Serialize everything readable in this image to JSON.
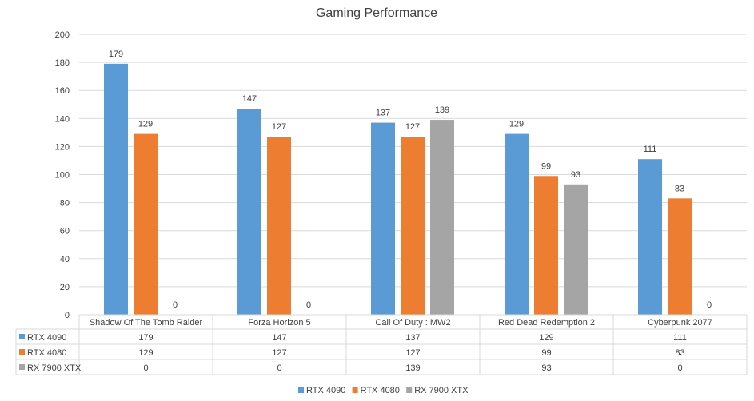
{
  "chart_data": {
    "type": "bar",
    "title": "Gaming Performance",
    "categories": [
      "Shadow Of The Tomb Raider",
      "Forza Horizon 5",
      "Call Of Duty : MW2",
      "Red Dead Redemption 2",
      "Cyberpunk 2077"
    ],
    "series": [
      {
        "name": "RTX 4090",
        "color": "#5b9bd5",
        "values": [
          179,
          147,
          137,
          129,
          111
        ]
      },
      {
        "name": "RTX 4080",
        "color": "#ed7d31",
        "values": [
          129,
          127,
          127,
          99,
          83
        ]
      },
      {
        "name": "RX 7900 XTX",
        "color": "#a5a5a5",
        "values": [
          0,
          0,
          139,
          93,
          0
        ]
      }
    ],
    "ylim": [
      0,
      200
    ],
    "yticks": [
      0,
      20,
      40,
      60,
      80,
      100,
      120,
      140,
      160,
      180,
      200
    ],
    "grid": true,
    "legend": "bottom",
    "data_table": true
  }
}
